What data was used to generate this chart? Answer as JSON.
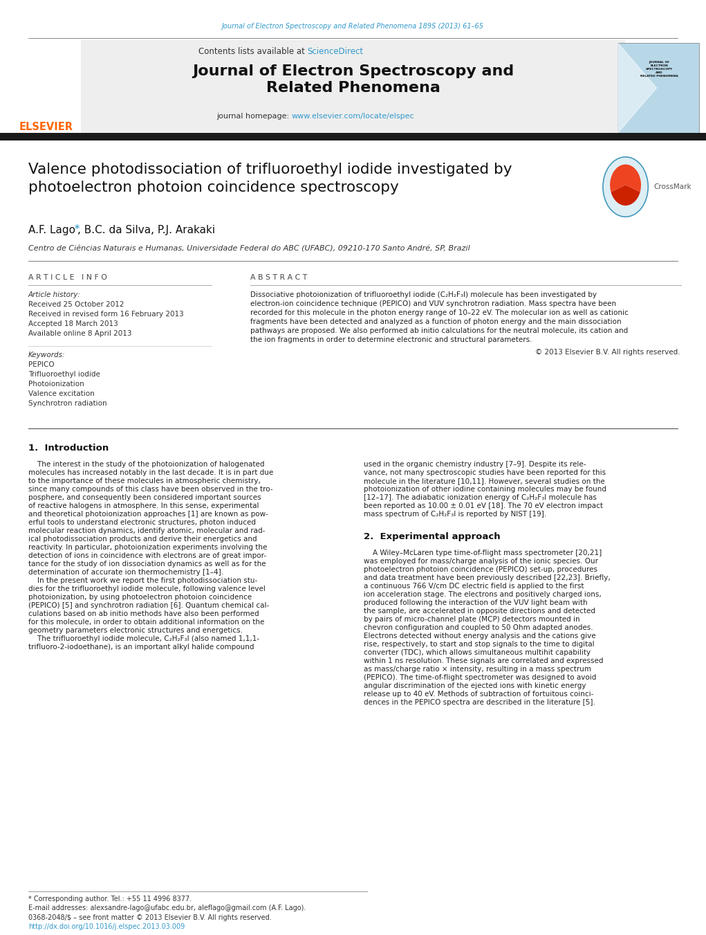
{
  "page_width": 10.21,
  "page_height": 13.51,
  "background": "#ffffff",
  "top_journal_ref": "Journal of Electron Spectroscopy and Related Phenomena 189S (2013) 61–65",
  "top_journal_color": "#3399cc",
  "header_bg": "#f0f0f0",
  "header_text1": "Contents lists available at ",
  "header_science_direct": "ScienceDirect",
  "header_homepage_url": "www.elsevier.com/locate/elspec",
  "thick_bar_color": "#1a1a1a",
  "article_title": "Valence photodissociation of trifluoroethyl iodide investigated by\nphotoelectron photoion coincidence spectroscopy",
  "authors": "A.F. Lago",
  "authors_rest": ", B.C. da Silva, P.J. Arakaki",
  "affiliation": "Centro de Ciências Naturais e Humanas, Universidade Federal do ABC (UFABC), 09210-170 Santo André, SP, Brazil",
  "article_info_title": "A R T I C L E   I N F O",
  "article_history_label": "Article history:",
  "article_history": [
    "Received 25 October 2012",
    "Received in revised form 16 February 2013",
    "Accepted 18 March 2013",
    "Available online 8 April 2013"
  ],
  "keywords_label": "Keywords:",
  "keywords": [
    "PEPICO",
    "Trifluoroethyl iodide",
    "Photoionization",
    "Valence excitation",
    "Synchrotron radiation"
  ],
  "abstract_title": "A B S T R A C T",
  "abstract_lines": [
    "Dissociative photoionization of trifluoroethyl iodide (C₂H₂F₃I) molecule has been investigated by",
    "electron-ion coincidence technique (PEPICO) and VUV synchrotron radiation. Mass spectra have been",
    "recorded for this molecule in the photon energy range of 10–22 eV. The molecular ion as well as cationic",
    "fragments have been detected and analyzed as a function of photon energy and the main dissociation",
    "pathways are proposed. We also performed ab initio calculations for the neutral molecule, its cation and",
    "the ion fragments in order to determine electronic and structural parameters."
  ],
  "copyright": "© 2013 Elsevier B.V. All rights reserved.",
  "section1_title": "1.  Introduction",
  "intro_col1": [
    "    The interest in the study of the photoionization of halogenated",
    "molecules has increased notably in the last decade. It is in part due",
    "to the importance of these molecules in atmospheric chemistry,",
    "since many compounds of this class have been observed in the tro-",
    "posphere, and consequently been considered important sources",
    "of reactive halogens in atmosphere. In this sense, experimental",
    "and theoretical photoionization approaches [1] are known as pow-",
    "erful tools to understand electronic structures, photon induced",
    "molecular reaction dynamics, identify atomic, molecular and rad-",
    "ical photodissociation products and derive their energetics and",
    "reactivity. In particular, photoionization experiments involving the",
    "detection of ions in coincidence with electrons are of great impor-",
    "tance for the study of ion dissociation dynamics as well as for the",
    "determination of accurate ion thermochemistry [1–4].",
    "    In the present work we report the first photodissociation stu-",
    "dies for the trifluoroethyl iodide molecule, following valence level",
    "photoionization, by using photoelectron photoion coincidence",
    "(PEPICO) [5] and synchrotron radiation [6]. Quantum chemical cal-",
    "culations based on ab initio methods have also been performed",
    "for this molecule, in order to obtain additional information on the",
    "geometry parameters electronic structures and energetics.",
    "    The trifluoroethyl iodide molecule, C₂H₂F₃I (also named 1,1,1-",
    "trifluoro-2-iodoethane), is an important alkyl halide compound"
  ],
  "intro_col2": [
    "used in the organic chemistry industry [7–9]. Despite its rele-",
    "vance, not many spectroscopic studies have been reported for this",
    "molecule in the literature [10,11]. However, several studies on the",
    "photoionization of other iodine containing molecules may be found",
    "[12–17]. The adiabatic ionization energy of C₂H₂F₃I molecule has",
    "been reported as 10.00 ± 0.01 eV [18]. The 70 eV electron impact",
    "mass spectrum of C₂H₂F₃I is reported by NIST [19]."
  ],
  "section2_title": "2.  Experimental approach",
  "sec2_col2": [
    "    A Wiley–McLaren type time-of-flight mass spectrometer [20,21]",
    "was employed for mass/charge analysis of the ionic species. Our",
    "photoelectron photoion coincidence (PEPICO) set-up, procedures",
    "and data treatment have been previously described [22,23]. Briefly,",
    "a continuous 766 V/cm DC electric field is applied to the first",
    "ion acceleration stage. The electrons and positively charged ions,",
    "produced following the interaction of the VUV light beam with",
    "the sample, are accelerated in opposite directions and detected",
    "by pairs of micro-channel plate (MCP) detectors mounted in",
    "chevron configuration and coupled to 50 Ohm adapted anodes.",
    "Electrons detected without energy analysis and the cations give",
    "rise, respectively, to start and stop signals to the time to digital",
    "converter (TDC), which allows simultaneous multihit capability",
    "within 1 ns resolution. These signals are correlated and expressed",
    "as mass/charge ratio × intensity, resulting in a mass spectrum",
    "(PEPICO). The time-of-flight spectrometer was designed to avoid",
    "angular discrimination of the ejected ions with kinetic energy",
    "release up to 40 eV. Methods of subtraction of fortuitous coinci-",
    "dences in the PEPICO spectra are described in the literature [5]."
  ],
  "footer_note": "* Corresponding author. Tel.: +55 11 4996 8377.",
  "footer_email": "E-mail addresses: alexsandre-lago@ufabc.edu.br, aleflago@gmail.com (A.F. Lago).",
  "footer_issn": "0368-2048/$ – see front matter © 2013 Elsevier B.V. All rights reserved.",
  "footer_doi": "http://dx.doi.org/10.1016/j.elspec.2013.03.009",
  "link_color": "#3399cc",
  "elsevier_color": "#ff6600"
}
